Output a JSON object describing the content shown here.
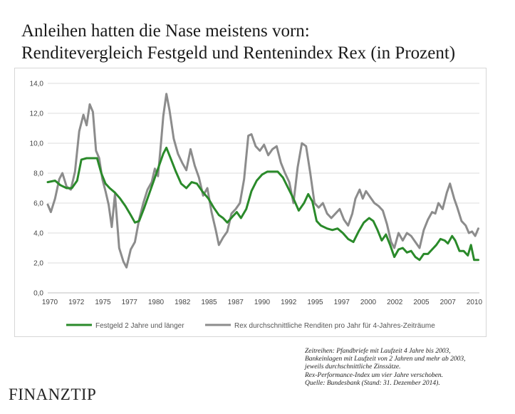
{
  "header": {
    "title_line1": "Anleihen hatten die Nase meistens vorn:",
    "title_line2": "Renditevergleich  Festgeld und Rentenindex Rex (in Prozent)"
  },
  "chart_data": {
    "type": "line",
    "x_ticks": [
      "1970",
      "1972",
      "1975",
      "1977",
      "1980",
      "1982",
      "1985",
      "1987",
      "1990",
      "1992",
      "1995",
      "1997",
      "2000",
      "2002",
      "2005",
      "2007",
      "2010"
    ],
    "y_ticks": [
      "0,0",
      "2,0",
      "4,0",
      "6,0",
      "8,0",
      "10,0",
      "12,0",
      "14,0"
    ],
    "ylim": [
      0,
      14
    ],
    "xlim": [
      1970.0,
      2011.1
    ],
    "grid": true,
    "legend_position": "bottom",
    "series": [
      {
        "name": "Festgeld 2 Jahre und länger",
        "color": "#2a8a2a",
        "points": [
          [
            1970.0,
            7.4
          ],
          [
            1970.7,
            7.5
          ],
          [
            1971.2,
            7.2
          ],
          [
            1971.8,
            7.0
          ],
          [
            1972.3,
            7.0
          ],
          [
            1972.8,
            7.5
          ],
          [
            1973.2,
            8.9
          ],
          [
            1973.7,
            9.0
          ],
          [
            1974.3,
            9.0
          ],
          [
            1974.7,
            9.0
          ],
          [
            1975.1,
            8.0
          ],
          [
            1975.5,
            7.3
          ],
          [
            1975.9,
            7.0
          ],
          [
            1976.4,
            6.7
          ],
          [
            1976.9,
            6.3
          ],
          [
            1977.4,
            5.8
          ],
          [
            1977.9,
            5.2
          ],
          [
            1978.3,
            4.7
          ],
          [
            1978.7,
            4.8
          ],
          [
            1979.2,
            5.7
          ],
          [
            1979.7,
            6.7
          ],
          [
            1980.2,
            7.7
          ],
          [
            1980.7,
            8.7
          ],
          [
            1981.0,
            9.3
          ],
          [
            1981.3,
            9.7
          ],
          [
            1981.7,
            9.0
          ],
          [
            1982.2,
            8.1
          ],
          [
            1982.7,
            7.3
          ],
          [
            1983.2,
            7.0
          ],
          [
            1983.7,
            7.4
          ],
          [
            1984.2,
            7.3
          ],
          [
            1984.7,
            6.8
          ],
          [
            1985.3,
            6.3
          ],
          [
            1985.8,
            5.7
          ],
          [
            1986.3,
            5.2
          ],
          [
            1986.7,
            5.0
          ],
          [
            1987.1,
            4.7
          ],
          [
            1987.6,
            5.1
          ],
          [
            1988.0,
            5.4
          ],
          [
            1988.4,
            5.0
          ],
          [
            1988.9,
            5.6
          ],
          [
            1989.4,
            6.8
          ],
          [
            1989.9,
            7.5
          ],
          [
            1990.4,
            7.9
          ],
          [
            1990.9,
            8.1
          ],
          [
            1991.4,
            8.1
          ],
          [
            1991.9,
            8.1
          ],
          [
            1992.4,
            7.7
          ],
          [
            1992.9,
            7.0
          ],
          [
            1993.4,
            6.3
          ],
          [
            1993.9,
            5.5
          ],
          [
            1994.4,
            6.0
          ],
          [
            1994.8,
            6.6
          ],
          [
            1995.2,
            6.1
          ],
          [
            1995.6,
            4.8
          ],
          [
            1996.0,
            4.5
          ],
          [
            1996.6,
            4.3
          ],
          [
            1997.1,
            4.2
          ],
          [
            1997.6,
            4.3
          ],
          [
            1998.1,
            4.0
          ],
          [
            1998.6,
            3.6
          ],
          [
            1999.1,
            3.4
          ],
          [
            1999.6,
            4.1
          ],
          [
            2000.1,
            4.7
          ],
          [
            2000.6,
            5.0
          ],
          [
            2001.0,
            4.8
          ],
          [
            2001.4,
            4.2
          ],
          [
            2001.8,
            3.5
          ],
          [
            2002.2,
            3.9
          ],
          [
            2002.6,
            3.2
          ],
          [
            2003.0,
            2.4
          ],
          [
            2003.4,
            2.9
          ],
          [
            2003.8,
            3.0
          ],
          [
            2004.2,
            2.7
          ],
          [
            2004.6,
            2.8
          ],
          [
            2005.0,
            2.4
          ],
          [
            2005.4,
            2.2
          ],
          [
            2005.8,
            2.6
          ],
          [
            2006.2,
            2.6
          ],
          [
            2006.6,
            2.9
          ],
          [
            2007.0,
            3.2
          ],
          [
            2007.4,
            3.6
          ],
          [
            2007.8,
            3.5
          ],
          [
            2008.1,
            3.3
          ],
          [
            2008.5,
            3.8
          ],
          [
            2008.8,
            3.5
          ],
          [
            2009.2,
            2.8
          ],
          [
            2009.6,
            2.8
          ],
          [
            2010.0,
            2.5
          ],
          [
            2010.3,
            3.2
          ],
          [
            2010.6,
            2.2
          ],
          [
            2011.0,
            2.2
          ]
        ]
      },
      {
        "name": "Rex durchschnittliche Renditen pro Jahr für 4-Jahres-Zeiträume",
        "color": "#8c8c8c",
        "points": [
          [
            1970.0,
            5.9
          ],
          [
            1970.3,
            5.4
          ],
          [
            1970.7,
            6.3
          ],
          [
            1971.1,
            7.6
          ],
          [
            1971.4,
            8.0
          ],
          [
            1971.8,
            7.1
          ],
          [
            1972.2,
            6.9
          ],
          [
            1972.6,
            8.1
          ],
          [
            1973.0,
            10.8
          ],
          [
            1973.4,
            11.9
          ],
          [
            1973.7,
            11.2
          ],
          [
            1974.0,
            12.6
          ],
          [
            1974.3,
            12.1
          ],
          [
            1974.6,
            9.5
          ],
          [
            1974.9,
            9.0
          ],
          [
            1975.2,
            7.6
          ],
          [
            1975.5,
            6.8
          ],
          [
            1975.8,
            5.9
          ],
          [
            1976.1,
            4.4
          ],
          [
            1976.4,
            6.6
          ],
          [
            1976.8,
            3.0
          ],
          [
            1977.2,
            2.1
          ],
          [
            1977.5,
            1.7
          ],
          [
            1977.9,
            2.9
          ],
          [
            1978.3,
            3.4
          ],
          [
            1978.7,
            4.9
          ],
          [
            1979.1,
            6.0
          ],
          [
            1979.5,
            6.9
          ],
          [
            1979.9,
            7.4
          ],
          [
            1980.2,
            8.3
          ],
          [
            1980.5,
            7.8
          ],
          [
            1980.8,
            10.1
          ],
          [
            1981.0,
            11.8
          ],
          [
            1981.3,
            13.3
          ],
          [
            1981.6,
            12.2
          ],
          [
            1982.0,
            10.3
          ],
          [
            1982.4,
            9.3
          ],
          [
            1982.8,
            8.7
          ],
          [
            1983.2,
            8.2
          ],
          [
            1983.6,
            9.6
          ],
          [
            1984.0,
            8.5
          ],
          [
            1984.4,
            7.7
          ],
          [
            1984.8,
            6.5
          ],
          [
            1985.2,
            7.0
          ],
          [
            1985.6,
            5.4
          ],
          [
            1986.0,
            4.2
          ],
          [
            1986.3,
            3.2
          ],
          [
            1986.7,
            3.7
          ],
          [
            1987.1,
            4.1
          ],
          [
            1987.5,
            5.3
          ],
          [
            1987.9,
            5.6
          ],
          [
            1988.3,
            6.0
          ],
          [
            1988.7,
            7.6
          ],
          [
            1989.1,
            10.5
          ],
          [
            1989.4,
            10.6
          ],
          [
            1989.8,
            9.8
          ],
          [
            1990.2,
            9.5
          ],
          [
            1990.6,
            9.9
          ],
          [
            1991.0,
            9.2
          ],
          [
            1991.4,
            9.6
          ],
          [
            1991.8,
            9.8
          ],
          [
            1992.2,
            8.7
          ],
          [
            1992.6,
            8.0
          ],
          [
            1993.0,
            7.4
          ],
          [
            1993.4,
            6.0
          ],
          [
            1993.8,
            8.4
          ],
          [
            1994.2,
            10.0
          ],
          [
            1994.6,
            9.8
          ],
          [
            1995.0,
            8.0
          ],
          [
            1995.4,
            6.0
          ],
          [
            1995.8,
            5.7
          ],
          [
            1996.2,
            6.0
          ],
          [
            1996.6,
            5.3
          ],
          [
            1997.0,
            5.0
          ],
          [
            1997.4,
            5.3
          ],
          [
            1997.8,
            5.6
          ],
          [
            1998.2,
            4.9
          ],
          [
            1998.6,
            4.5
          ],
          [
            1999.0,
            5.3
          ],
          [
            1999.3,
            6.3
          ],
          [
            1999.7,
            6.9
          ],
          [
            2000.0,
            6.3
          ],
          [
            2000.3,
            6.8
          ],
          [
            2000.7,
            6.4
          ],
          [
            2001.1,
            6.0
          ],
          [
            2001.5,
            5.8
          ],
          [
            2001.9,
            5.5
          ],
          [
            2002.3,
            4.6
          ],
          [
            2002.7,
            3.4
          ],
          [
            2003.0,
            3.0
          ],
          [
            2003.4,
            4.0
          ],
          [
            2003.8,
            3.5
          ],
          [
            2004.2,
            4.0
          ],
          [
            2004.6,
            3.8
          ],
          [
            2005.0,
            3.4
          ],
          [
            2005.4,
            3.0
          ],
          [
            2005.8,
            4.2
          ],
          [
            2006.2,
            4.9
          ],
          [
            2006.6,
            5.4
          ],
          [
            2006.9,
            5.3
          ],
          [
            2007.2,
            6.0
          ],
          [
            2007.6,
            5.6
          ],
          [
            2008.0,
            6.7
          ],
          [
            2008.3,
            7.3
          ],
          [
            2008.7,
            6.3
          ],
          [
            2009.0,
            5.7
          ],
          [
            2009.4,
            4.8
          ],
          [
            2009.8,
            4.5
          ],
          [
            2010.1,
            4.0
          ],
          [
            2010.4,
            4.1
          ],
          [
            2010.7,
            3.8
          ],
          [
            2011.0,
            4.3
          ]
        ]
      }
    ]
  },
  "legend": {
    "item1": "Festgeld 2 Jahre und länger",
    "item2": "Rex durchschnittliche Renditen pro Jahr für 4-Jahres-Zeiträume"
  },
  "source_note": {
    "line1": "Zeitreihen: Pfandbriefe mit Laufzeit 4 Jahre bis 2003,",
    "line2": "Bankeinlagen mit Laufzeit von 2 Jahren und mehr ab 2003,",
    "line3": "jeweils durchschnittliche Zinssätze.",
    "line4": "Rex-Performance-Index um vier Jahre verschoben.",
    "line5": "Quelle: Bundesbank (Stand: 31. Dezember 2014)."
  },
  "brand": {
    "logo_text": "FINANZTIP"
  }
}
